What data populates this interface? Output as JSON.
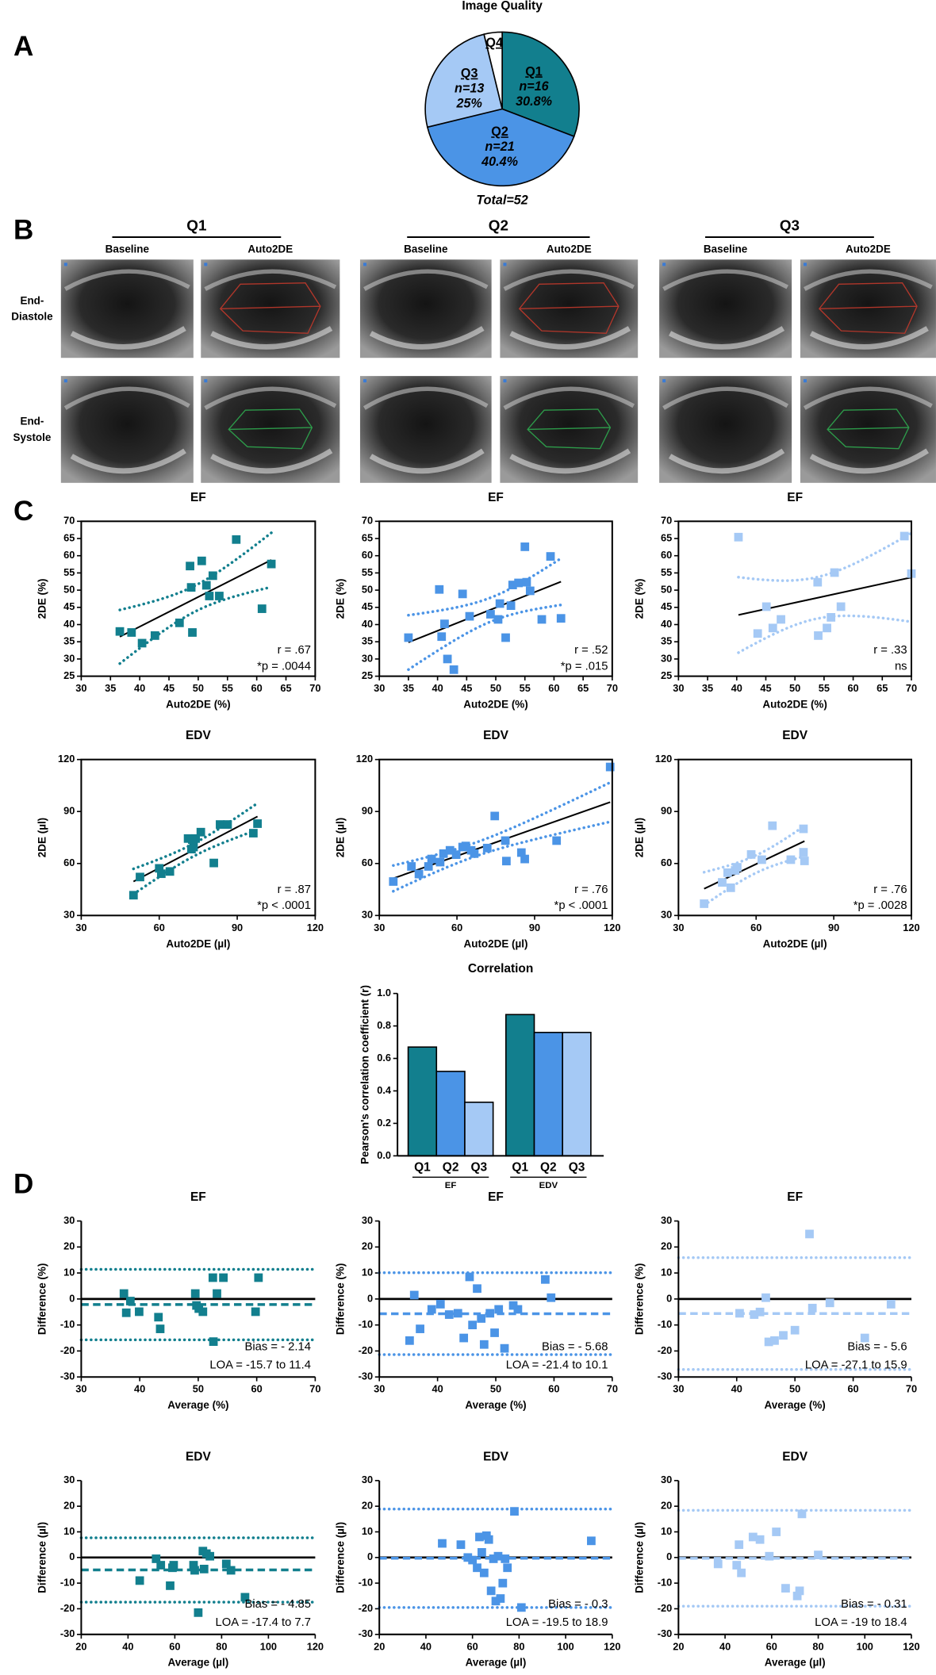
{
  "panel_labels": [
    "A",
    "B",
    "C",
    "D"
  ],
  "image_grid": {
    "groups": [
      "Q1",
      "Q2",
      "Q3"
    ],
    "columns": [
      "Baseline",
      "Auto2DE"
    ],
    "rows": [
      [
        "End-",
        "Diastole"
      ],
      [
        "End-",
        "Systole"
      ]
    ]
  },
  "chart_data": [
    {
      "type": "pie",
      "title": "Image Quality",
      "categories": [
        "Q1",
        "Q2",
        "Q3",
        "Q4"
      ],
      "values": [
        30.8,
        40.4,
        25,
        3.8
      ],
      "value_labels": [
        "30.8%",
        "40.4%",
        "25%",
        null
      ],
      "count_labels": [
        "n=16",
        "n=21",
        "n=13",
        null
      ],
      "colors": [
        "#127f8e",
        "#4b94e6",
        "#a5c9f5",
        "#ffffff"
      ],
      "total_label": "Total=52"
    },
    {
      "type": "scatter",
      "title": "EF",
      "x_label": "Auto2DE (%)",
      "y_label": "2DE (%)",
      "color": "#127f8e",
      "x": [
        36.6,
        38.6,
        40.4,
        42.6,
        46.8,
        48.6,
        48.8,
        49.0,
        50.6,
        51.4,
        51.9,
        52.5,
        53.6,
        56.5,
        60.9,
        62.5
      ],
      "y": [
        38.0,
        37.7,
        34.6,
        36.8,
        40.5,
        57.0,
        50.8,
        37.7,
        58.5,
        51.4,
        48.3,
        54.2,
        48.3,
        64.7,
        44.6,
        57.6
      ],
      "xlim": [
        30,
        70
      ],
      "xticks": [
        30,
        35,
        40,
        45,
        50,
        55,
        60,
        65,
        70
      ],
      "ylim": [
        25,
        70
      ],
      "yticks": [
        25,
        30,
        35,
        40,
        45,
        50,
        55,
        60,
        65,
        70
      ],
      "annotations": [
        "r = .67",
        "*p = .0044"
      ]
    },
    {
      "type": "scatter",
      "title": "EF",
      "x_label": "Auto2DE (%)",
      "y_label": "2DE (%)",
      "color": "#4b94e6",
      "x": [
        35.0,
        40.3,
        40.7,
        41.2,
        41.7,
        42.8,
        44.3,
        45.5,
        49.1,
        50.4,
        50.7,
        51.7,
        52.6,
        52.9,
        53.9,
        55.0,
        55.3,
        55.9,
        57.9,
        59.4,
        61.2
      ],
      "y": [
        36.2,
        50.2,
        36.5,
        40.2,
        30.0,
        26.9,
        48.9,
        42.4,
        43.0,
        41.5,
        46.1,
        36.2,
        45.5,
        51.5,
        52.1,
        62.6,
        52.3,
        49.8,
        41.5,
        59.8,
        41.8
      ],
      "xlim": [
        30,
        70
      ],
      "xticks": [
        30,
        35,
        40,
        45,
        50,
        55,
        60,
        65,
        70
      ],
      "ylim": [
        25,
        70
      ],
      "yticks": [
        25,
        30,
        35,
        40,
        45,
        50,
        55,
        60,
        65,
        70
      ],
      "annotations": [
        "r = .52",
        "*p = .015"
      ]
    },
    {
      "type": "scatter",
      "title": "EF",
      "x_label": "Auto2DE (%)",
      "y_label": "2DE (%)",
      "color": "#a5c9f5",
      "x": [
        40.3,
        43.6,
        45.1,
        46.2,
        47.6,
        53.9,
        54.0,
        55.5,
        56.2,
        56.8,
        57.9,
        68.8,
        70.0
      ],
      "y": [
        65.4,
        37.4,
        45.2,
        39.0,
        41.5,
        52.3,
        36.8,
        39.0,
        42.1,
        55.1,
        45.2,
        65.7,
        54.8
      ],
      "xlim": [
        30,
        70
      ],
      "xticks": [
        30,
        35,
        40,
        45,
        50,
        55,
        60,
        65,
        70
      ],
      "ylim": [
        25,
        70
      ],
      "yticks": [
        25,
        30,
        35,
        40,
        45,
        50,
        55,
        60,
        65,
        70
      ],
      "annotations": [
        "r = .33",
        "ns"
      ]
    },
    {
      "type": "scatter",
      "title": "EDV",
      "x_label": "Auto2DE (µl)",
      "y_label": "2DE (µl)",
      "color": "#127f8e",
      "x": [
        50.1,
        52.6,
        60.0,
        60.8,
        64.1,
        71.1,
        72.4,
        73.2,
        74.0,
        76.0,
        81.0,
        83.4,
        86.3,
        96.2,
        97.8,
        72.7
      ],
      "y": [
        41.7,
        52.2,
        57.2,
        54.1,
        55.4,
        74.4,
        68.3,
        69.5,
        74.4,
        78.1,
        60.3,
        82.5,
        82.5,
        77.5,
        83.0,
        73.8
      ],
      "xlim": [
        30,
        120
      ],
      "xticks": [
        30,
        60,
        90,
        120
      ],
      "ylim": [
        30,
        120
      ],
      "yticks": [
        30,
        60,
        90,
        120
      ],
      "annotations": [
        "r = .87",
        "*p < .0001"
      ]
    },
    {
      "type": "scatter",
      "title": "EDV",
      "x_label": "Auto2DE (µl)",
      "y_label": "2DE (µl)",
      "color": "#4b94e6",
      "x": [
        35.4,
        42.4,
        45.3,
        49.0,
        50.2,
        53.5,
        54.8,
        57.3,
        59.7,
        62.2,
        63.4,
        65.5,
        66.7,
        71.7,
        74.6,
        78.7,
        79.1,
        84.9,
        86.2,
        98.5,
        119.2
      ],
      "y": [
        49.6,
        58.3,
        53.9,
        58.3,
        62.6,
        60.8,
        65.7,
        67.6,
        65.1,
        69.5,
        70.1,
        67.6,
        65.7,
        68.9,
        87.4,
        73.2,
        61.4,
        66.3,
        62.6,
        73.2,
        115.7
      ],
      "xlim": [
        30,
        120
      ],
      "xticks": [
        30,
        60,
        90,
        120
      ],
      "ylim": [
        30,
        120
      ],
      "yticks": [
        30,
        60,
        90,
        120
      ],
      "annotations": [
        "r = .76",
        "*p < .0001"
      ]
    },
    {
      "type": "scatter",
      "title": "EDV",
      "x_label": "Auto2DE (µl)",
      "y_label": "2DE (µl)",
      "color": "#a5c9f5",
      "x": [
        39.9,
        46.9,
        49.0,
        50.2,
        51.9,
        52.7,
        58.1,
        62.2,
        66.3,
        73.4,
        78.3,
        78.3,
        78.7
      ],
      "y": [
        36.8,
        49.1,
        54.7,
        46.0,
        56.0,
        57.8,
        65.2,
        62.2,
        81.8,
        62.2,
        80.0,
        66.5,
        61.5
      ],
      "xlim": [
        30,
        120
      ],
      "xticks": [
        30,
        60,
        90,
        120
      ],
      "ylim": [
        30,
        120
      ],
      "yticks": [
        30,
        60,
        90,
        120
      ],
      "annotations": [
        "r = .76",
        "*p = .0028"
      ]
    },
    {
      "type": "bar",
      "title": "Correlation",
      "y_label": "Pearson's correlation coefficient (r)",
      "groups": [
        "EF",
        "EDV"
      ],
      "series": [
        {
          "name": "Q1",
          "color": "#127f8e",
          "values": [
            0.67,
            0.87
          ]
        },
        {
          "name": "Q2",
          "color": "#4b94e6",
          "values": [
            0.52,
            0.76
          ]
        },
        {
          "name": "Q3",
          "color": "#a5c9f5",
          "values": [
            0.33,
            0.76
          ]
        }
      ],
      "ylim": [
        0,
        1
      ],
      "yticks": [
        {
          "value": 0,
          "label": "0.0"
        },
        {
          "value": 0.2,
          "label": "0.2"
        },
        {
          "value": 0.4,
          "label": "0.4"
        },
        {
          "value": 0.6,
          "label": "0.6"
        },
        {
          "value": 0.8,
          "label": "0.8"
        },
        {
          "value": 1,
          "label": "1.0"
        }
      ]
    },
    {
      "type": "bland-altman",
      "title": "EF",
      "x_label": "Average (%)",
      "y_label": "Difference (%)",
      "color": "#127f8e",
      "x": [
        37.3,
        37.7,
        38.4,
        39.9,
        43.2,
        43.5,
        49.5,
        49.7,
        50.1,
        50.8,
        52.5,
        52.6,
        53.2,
        54.3,
        59.8,
        60.3
      ],
      "y": [
        2.1,
        -5.3,
        -0.8,
        -4.9,
        -7.0,
        -11.5,
        2.1,
        -2.5,
        -3.7,
        -4.9,
        8.2,
        -16.4,
        2.1,
        8.2,
        -4.9,
        8.2
      ],
      "bias": -2.14,
      "loa": [
        -15.7,
        11.4
      ],
      "bias_label": "Bias = - 2.14",
      "loa_label": "LOA = -15.7 to 11.4",
      "xlim": [
        30,
        70
      ],
      "xticks": [
        30,
        40,
        50,
        60,
        70
      ],
      "ylim": [
        -30,
        30
      ],
      "yticks": [
        -30,
        -20,
        -10,
        0,
        10,
        20,
        30
      ]
    },
    {
      "type": "bland-altman",
      "title": "EF",
      "x_label": "Average (%)",
      "y_label": "Difference (%)",
      "color": "#4b94e6",
      "x": [
        35.2,
        36.0,
        37.0,
        39.0,
        40.5,
        42.0,
        43.5,
        44.5,
        45.5,
        46.0,
        46.8,
        47.5,
        48.0,
        49.0,
        49.8,
        50.5,
        51.5,
        53.0,
        53.8,
        58.5,
        59.5
      ],
      "y": [
        -16.0,
        1.5,
        -11.5,
        -4.0,
        -2.0,
        -6.0,
        -5.5,
        -15.0,
        8.5,
        -10.0,
        4.0,
        -7.5,
        -17.5,
        -5.5,
        -13.0,
        -4.0,
        -19.0,
        -2.5,
        -4.0,
        7.5,
        0.5
      ],
      "bias": -5.68,
      "loa": [
        -21.4,
        10.1
      ],
      "bias_label": "Bias = - 5.68",
      "loa_label": "LOA = -21.4 to 10.1",
      "xlim": [
        30,
        70
      ],
      "xticks": [
        30,
        40,
        50,
        60,
        70
      ],
      "ylim": [
        -30,
        30
      ],
      "yticks": [
        -30,
        -20,
        -10,
        0,
        10,
        20,
        30
      ]
    },
    {
      "type": "bland-altman",
      "title": "EF",
      "x_label": "Average (%)",
      "y_label": "Difference (%)",
      "color": "#a5c9f5",
      "x": [
        40.5,
        43.0,
        44.0,
        45.0,
        45.5,
        46.5,
        48.0,
        50.0,
        52.5,
        53.0,
        56.0,
        62.0,
        66.5
      ],
      "y": [
        -5.5,
        -6.0,
        -5.0,
        0.5,
        -16.5,
        -16.0,
        -14.0,
        -12.0,
        25.0,
        -3.5,
        -1.5,
        -15.0,
        -2.0
      ],
      "bias": -5.6,
      "loa": [
        -27.1,
        15.9
      ],
      "bias_label": "Bias = - 5.6",
      "loa_label": "LOA = -27.1 to 15.9",
      "xlim": [
        30,
        70
      ],
      "xticks": [
        30,
        40,
        50,
        60,
        70
      ],
      "ylim": [
        -30,
        30
      ],
      "yticks": [
        -30,
        -20,
        -10,
        0,
        10,
        20,
        30
      ]
    },
    {
      "type": "bland-altman",
      "title": "EDV",
      "x_label": "Average (µl)",
      "y_label": "Difference (µl)",
      "color": "#127f8e",
      "x": [
        45.0,
        52.0,
        54.0,
        58.0,
        59.0,
        59.5,
        68.0,
        68.5,
        70.0,
        72.0,
        72.5,
        75.0,
        82.0,
        84.0,
        90.0,
        73.5
      ],
      "y": [
        -9.0,
        -0.5,
        -3.0,
        -11.0,
        -4.0,
        -3.0,
        -3.0,
        -5.0,
        -21.5,
        2.5,
        -4.5,
        0.5,
        -2.5,
        -5.0,
        -15.5,
        1.5
      ],
      "bias": -4.85,
      "loa": [
        -17.4,
        7.7
      ],
      "bias_label": "Bias = - 4.85",
      "loa_label": "LOA = -17.4 to 7.7",
      "xlim": [
        20,
        120
      ],
      "xticks": [
        20,
        40,
        60,
        80,
        100,
        120
      ],
      "ylim": [
        -30,
        30
      ],
      "yticks": [
        -30,
        -20,
        -10,
        0,
        10,
        20,
        30
      ]
    },
    {
      "type": "bland-altman",
      "title": "EDV",
      "x_label": "Average (µl)",
      "y_label": "Difference (µl)",
      "color": "#4b94e6",
      "x": [
        47.0,
        55.0,
        58.0,
        60.0,
        62.0,
        63.0,
        64.0,
        65.0,
        66.0,
        67.0,
        68.0,
        69.0,
        70.0,
        71.0,
        72.0,
        73.0,
        74.0,
        75.0,
        78.0,
        81.0,
        111.0
      ],
      "y": [
        5.5,
        5.0,
        0.0,
        -1.0,
        -4.0,
        8.0,
        2.0,
        -6.0,
        8.5,
        7.0,
        -13.0,
        -0.5,
        -17.0,
        0.5,
        -16.0,
        -10.0,
        -0.5,
        -4.0,
        18.0,
        -19.5,
        6.5
      ],
      "bias": -0.3,
      "loa": [
        -19.5,
        18.9
      ],
      "bias_label": "Bias = - 0.3",
      "loa_label": "LOA = -19.5 to 18.9",
      "xlim": [
        20,
        120
      ],
      "xticks": [
        20,
        40,
        60,
        80,
        100,
        120
      ],
      "ylim": [
        -30,
        30
      ],
      "yticks": [
        -30,
        -20,
        -10,
        0,
        10,
        20,
        30
      ]
    },
    {
      "type": "bland-altman",
      "title": "EDV",
      "x_label": "Average (µl)",
      "y_label": "Difference (µl)",
      "color": "#a5c9f5",
      "x": [
        37.0,
        45.0,
        46.0,
        47.0,
        52.0,
        55.0,
        59.0,
        62.0,
        66.0,
        71.0,
        72.0,
        73.0,
        80.0
      ],
      "y": [
        -2.5,
        -3.0,
        5.0,
        -6.0,
        8.0,
        7.0,
        0.5,
        10.0,
        -12.0,
        -15.0,
        -13.0,
        17.0,
        1.0
      ],
      "bias": -0.31,
      "loa": [
        -19,
        18.4
      ],
      "bias_label": "Bias = - 0.31",
      "loa_label": "LOA = -19 to 18.4",
      "xlim": [
        20,
        120
      ],
      "xticks": [
        20,
        40,
        60,
        80,
        100,
        120
      ],
      "ylim": [
        -30,
        30
      ],
      "yticks": [
        -30,
        -20,
        -10,
        0,
        10,
        20,
        30
      ]
    }
  ]
}
